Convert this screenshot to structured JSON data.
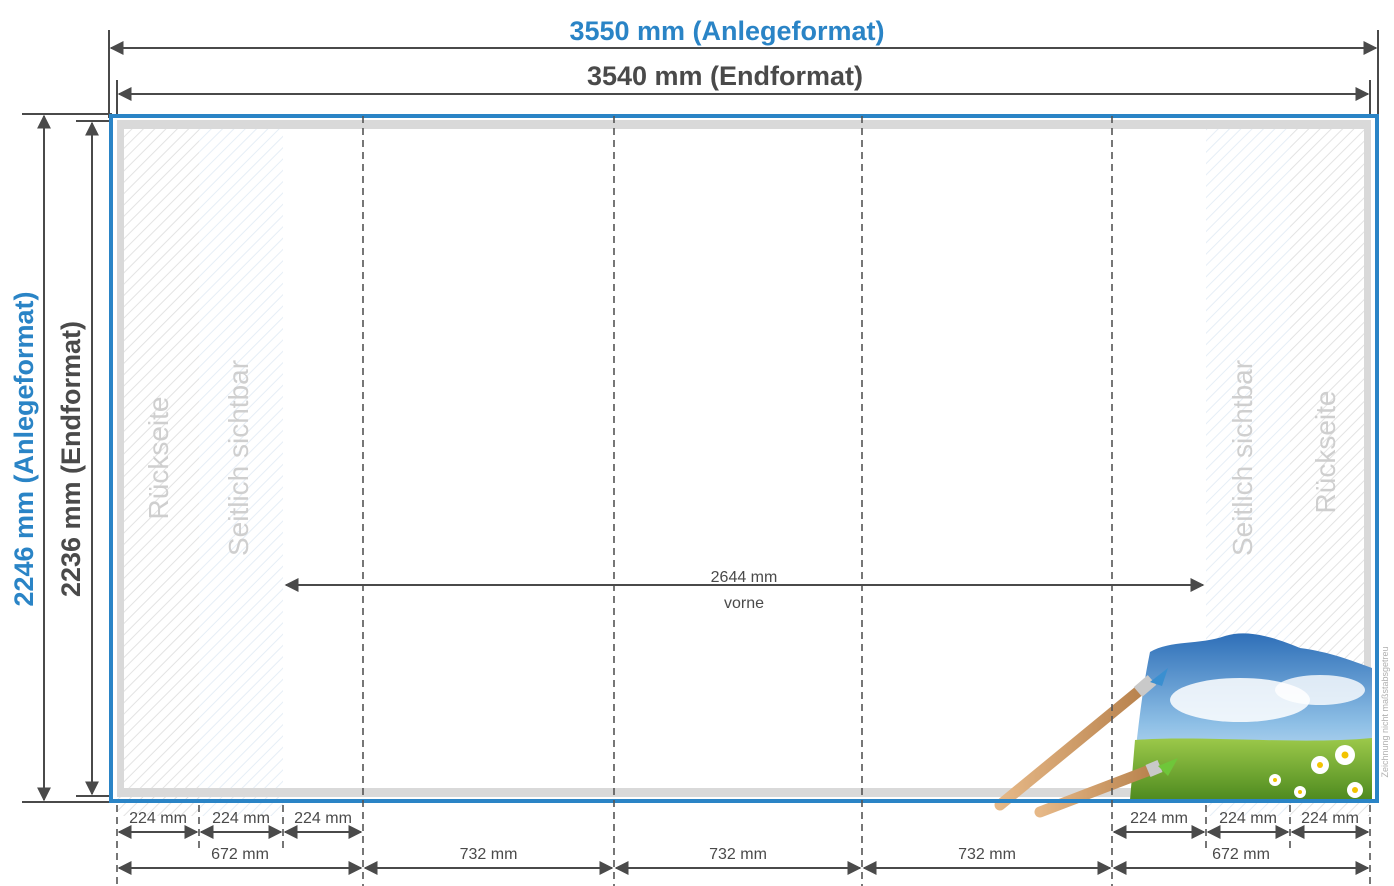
{
  "width_anlege": "3550 mm (Anlegeformat)",
  "width_end": "3540 mm (Endformat)",
  "height_anlege": "2246 mm (Anlegeformat)",
  "height_end": "2236 mm (Endformat)",
  "zones": {
    "back_left": "Rückseite",
    "side_left": "Seitlich sichtbar",
    "side_right": "Seitlich sichtbar",
    "back_right": "Rückseite"
  },
  "front": {
    "value": "2644 mm",
    "label": "vorne"
  },
  "bottom_small": [
    "224 mm",
    "224 mm",
    "224 mm",
    "224 mm",
    "224 mm",
    "224 mm"
  ],
  "bottom_large": [
    "672 mm",
    "732 mm",
    "732 mm",
    "732 mm",
    "672 mm"
  ],
  "note": "Zeichnung nicht maßstabsgetreu",
  "colors": {
    "accent": "#2a84c6",
    "text": "#4a4a4a",
    "zone": "#cfcfcf"
  }
}
